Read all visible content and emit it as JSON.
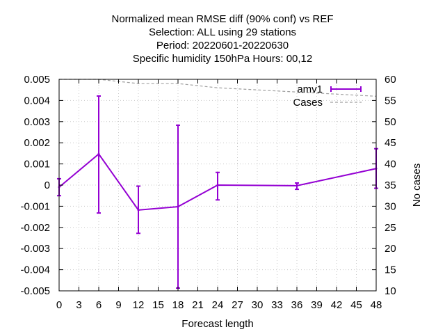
{
  "chart_data": {
    "type": "line",
    "title_lines": [
      "Normalized mean RMSE diff (90% conf) vs REF",
      "Selection: ALL using    29 stations",
      "Period: 20220601-20220630",
      "Specific humidity 150hPa   Hours:  00,12"
    ],
    "xlabel": "Forecast length",
    "ylabel": "",
    "y2label": "No cases",
    "xlim": [
      0,
      48
    ],
    "ylim": [
      -0.005,
      0.005
    ],
    "y2lim": [
      10,
      60
    ],
    "xticks": [
      0,
      3,
      6,
      9,
      12,
      15,
      18,
      21,
      24,
      27,
      30,
      33,
      36,
      39,
      42,
      45,
      48
    ],
    "yticks": [
      -0.005,
      -0.004,
      -0.003,
      -0.002,
      -0.001,
      0,
      0.001,
      0.002,
      0.003,
      0.004,
      0.005
    ],
    "ytick_labels": [
      "-0.005",
      "-0.004",
      "-0.003",
      "-0.002",
      "-0.001",
      "0",
      "0.001",
      "0.002",
      "0.003",
      "0.004",
      "0.005"
    ],
    "y2ticks": [
      10,
      15,
      20,
      25,
      30,
      35,
      40,
      45,
      50,
      55,
      60
    ],
    "grid": true,
    "legend_position": "top-right",
    "series": [
      {
        "name": "amv1",
        "color": "#9400d3",
        "axis": "y",
        "x": [
          0,
          6,
          12,
          18,
          24,
          36,
          48
        ],
        "y": [
          -0.0001,
          0.00147,
          -0.00118,
          -0.00102,
          0.0,
          -3e-05,
          0.00078
        ],
        "err_low": [
          -0.0005,
          -0.00132,
          -0.00228,
          -0.00487,
          -0.0007,
          -0.0002,
          -0.00015
        ],
        "err_high": [
          0.0003,
          0.00421,
          -5e-05,
          0.00283,
          0.0006,
          0.0001,
          0.00172
        ]
      },
      {
        "name": "Cases",
        "color": "#a0a0a0",
        "axis": "y2",
        "dashed": true,
        "x": [
          0,
          6,
          12,
          18,
          24,
          36,
          48
        ],
        "y": [
          60,
          60,
          59,
          59,
          58,
          57,
          56
        ]
      }
    ]
  }
}
